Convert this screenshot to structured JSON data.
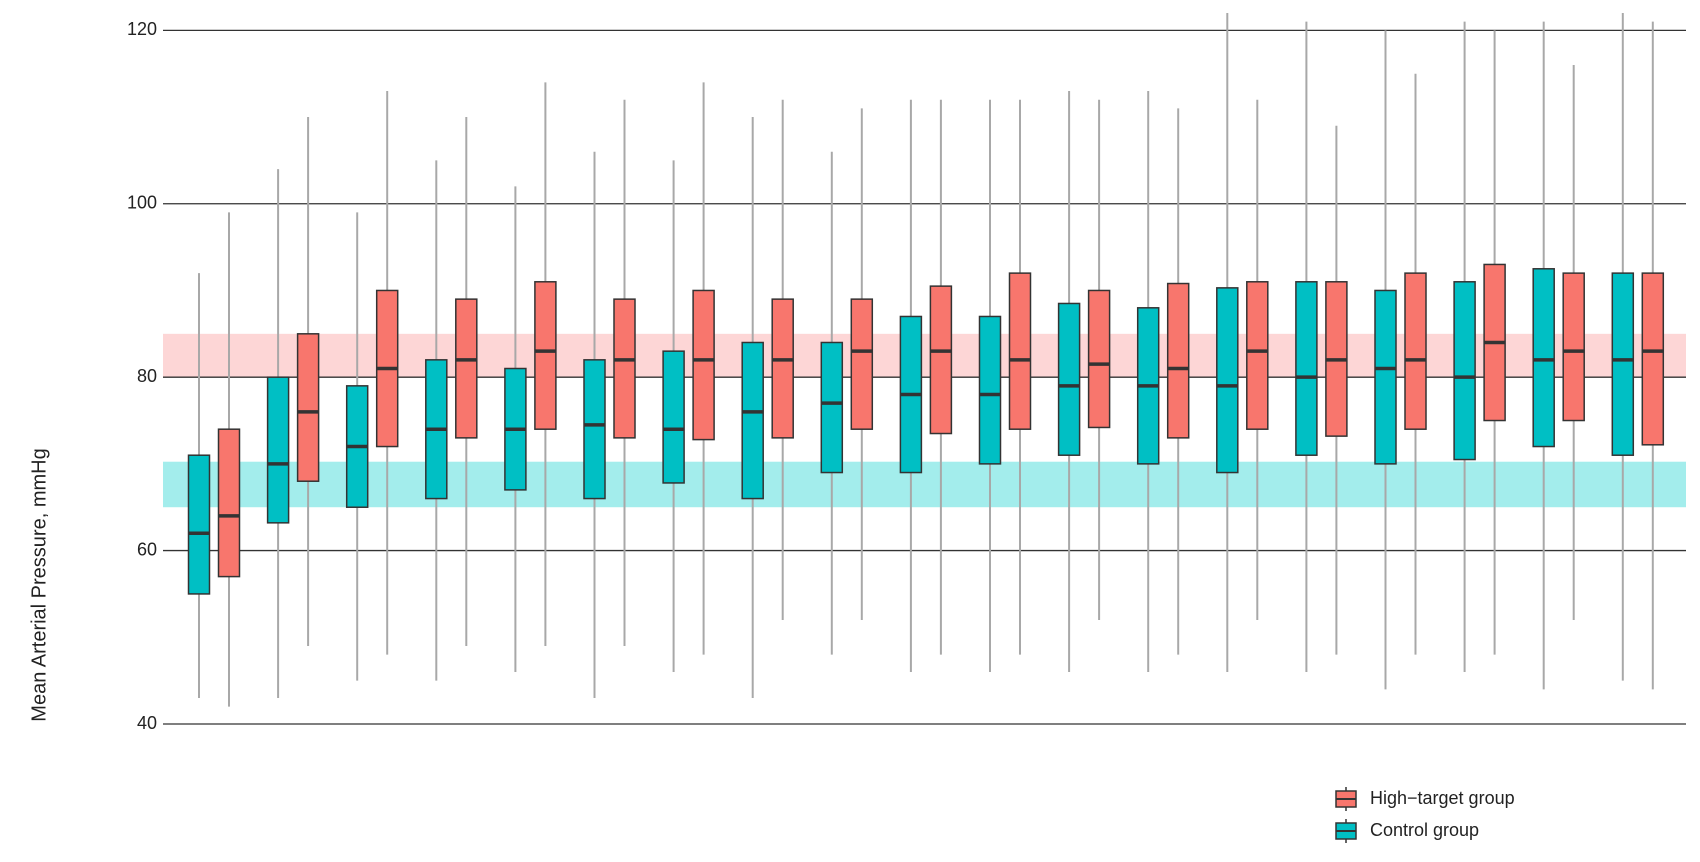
{
  "chart_data": {
    "type": "box",
    "y_label": "Mean Arterial Pressure, mmHg",
    "ylim": [
      40,
      122
    ],
    "yticks": [
      40,
      60,
      80,
      100,
      120
    ],
    "grid": true,
    "bands": [
      {
        "from": 80,
        "to": 85,
        "color": "#fdd6d6"
      },
      {
        "from": 65,
        "to": 70.25,
        "color": "#a3edec"
      }
    ],
    "series": [
      {
        "name": "High−target group",
        "color": "#f8766d",
        "min": [
          42,
          49,
          48,
          49,
          49,
          49,
          48,
          52,
          52,
          48,
          48,
          52,
          48,
          52,
          48,
          48,
          48,
          52,
          44
        ],
        "q1": [
          57,
          68,
          72,
          73,
          74,
          73,
          72.8,
          73,
          74,
          73.5,
          74,
          74.2,
          73,
          74,
          73.2,
          74,
          75,
          75,
          72.2
        ],
        "median": [
          64,
          76,
          81,
          82,
          83,
          82,
          82,
          82,
          83,
          83,
          82,
          81.5,
          81,
          83,
          82,
          82,
          84,
          83,
          83
        ],
        "q3": [
          74,
          85,
          90,
          89,
          91,
          89,
          90,
          89,
          89,
          90.5,
          92,
          90,
          90.8,
          91,
          91,
          92,
          93,
          92,
          92
        ],
        "max": [
          99,
          110,
          113,
          110,
          114,
          112,
          114,
          112,
          111,
          112,
          112,
          112,
          111,
          112,
          109,
          115,
          120,
          116,
          121
        ]
      },
      {
        "name": "Control group",
        "color": "#00bfc4",
        "min": [
          43,
          43,
          45,
          45,
          46,
          43,
          46,
          43,
          48,
          46,
          46,
          46,
          46,
          46,
          46,
          44,
          46,
          44,
          45
        ],
        "q1": [
          55,
          63.2,
          65,
          66,
          67,
          66,
          67.8,
          66,
          69,
          69,
          70,
          71,
          70,
          69,
          71,
          70,
          70.5,
          72,
          71
        ],
        "median": [
          62,
          70,
          72,
          74,
          74,
          74.5,
          74,
          76,
          77,
          78,
          78,
          79,
          79,
          79,
          80,
          81,
          80,
          82,
          82
        ],
        "q3": [
          71,
          80,
          79,
          82,
          81,
          82,
          83,
          84,
          84,
          87,
          87,
          88.5,
          88,
          90.3,
          91,
          90,
          91,
          92.5,
          92
        ],
        "max": [
          92,
          104,
          99,
          105,
          102,
          106,
          105,
          110,
          106,
          112,
          112,
          113,
          113,
          122,
          121,
          120,
          121,
          121,
          122
        ]
      }
    ]
  }
}
